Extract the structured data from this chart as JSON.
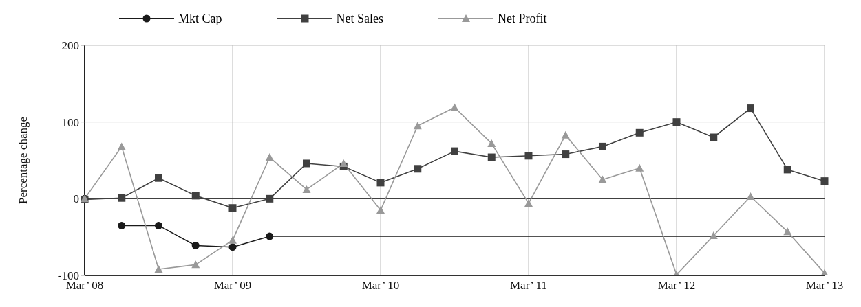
{
  "chart_data": {
    "type": "line",
    "categories": [
      "Mar’ 08",
      null,
      null,
      null,
      "Mar’ 09",
      null,
      null,
      null,
      "Mar’ 10",
      null,
      null,
      null,
      "Mar’ 11",
      null,
      null,
      null,
      "Mar’ 12",
      null,
      null,
      null,
      "Mar’ 13"
    ],
    "series": [
      {
        "name": "Mkt Cap",
        "color": "#1a1a1a",
        "marker": "circle",
        "values": [
          null,
          -35,
          -35,
          -61,
          -63,
          -49,
          null,
          null,
          null,
          null,
          null,
          null,
          null,
          null,
          null,
          null,
          null,
          null,
          null,
          null,
          null
        ]
      },
      {
        "type": "scatter",
        "color": "#1a1a1a",
        "marker": "circle",
        "x": [
          "Mar’ 08"
        ],
        "values": [
          0
        ]
      },
      {
        "color": "#1a1a1a",
        "marker": "none",
        "values": [
          null,
          null,
          null,
          null,
          null,
          -49,
          -49,
          -49,
          -49,
          -49,
          -49,
          -49,
          -49,
          -49,
          -49,
          -49,
          -49,
          -49,
          -49,
          -49,
          -49
        ]
      },
      {
        "name": "Net Sales",
        "color": "#404040",
        "marker": "square",
        "values": [
          -1,
          1,
          27,
          4,
          -12,
          0,
          46,
          42,
          21,
          39,
          62,
          54,
          56,
          58,
          68,
          86,
          100,
          80,
          118,
          38,
          23
        ]
      },
      {
        "name": "Net Profit",
        "color": "#999999",
        "marker": "triangle",
        "values": [
          0,
          68,
          -92,
          -86,
          -54,
          54,
          12,
          46,
          -15,
          95,
          119,
          72,
          -6,
          83,
          25,
          40,
          -99,
          -48,
          3,
          -43,
          -97
        ]
      }
    ],
    "ylabel": "Percentage change",
    "ylim": [
      -100,
      200
    ],
    "yticks": [
      -100,
      0,
      100,
      200
    ],
    "ref_lines": [
      {
        "axis": "y",
        "value": 0,
        "color": "#404040"
      }
    ],
    "grid": true,
    "legend": "top"
  }
}
